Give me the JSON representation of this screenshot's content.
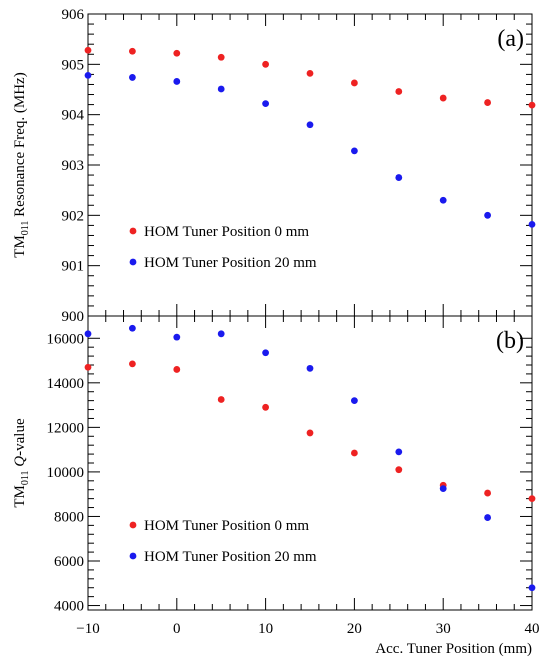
{
  "colors": {
    "series_0mm": "#ee2222",
    "series_20mm": "#1a1aee",
    "axis": "#000000"
  },
  "x_axis": {
    "title": "Acc. Tuner Position (mm)",
    "ticks": [
      -10,
      0,
      10,
      20,
      30,
      40
    ],
    "tick_labels": [
      "−10",
      "0",
      "10",
      "20",
      "30",
      "40"
    ],
    "range": [
      -10,
      40
    ]
  },
  "chart_data": [
    {
      "type": "scatter",
      "panel_label": "(a)",
      "ylabel_main": "TM",
      "ylabel_sub": "011",
      "ylabel_rest": " Resonance Freq. (MHz)",
      "ylim": [
        900,
        906
      ],
      "y_ticks": [
        900,
        901,
        902,
        903,
        904,
        905,
        906
      ],
      "legend": "bottom-left",
      "grid": false,
      "x": [
        -10,
        -5,
        0,
        5,
        10,
        15,
        20,
        25,
        30,
        35,
        40
      ],
      "series": [
        {
          "name": "HOM Tuner Position 0 mm",
          "values": [
            905.28,
            905.26,
            905.22,
            905.14,
            905.0,
            904.82,
            904.63,
            904.46,
            904.33,
            904.24,
            904.19
          ]
        },
        {
          "name": "HOM Tuner Position 20 mm",
          "values": [
            904.78,
            904.74,
            904.66,
            904.51,
            904.22,
            903.8,
            903.28,
            902.75,
            902.3,
            902.0,
            901.82
          ]
        }
      ]
    },
    {
      "type": "scatter",
      "panel_label": "(b)",
      "ylabel_main": "TM",
      "ylabel_sub": "011",
      "ylabel_italic": "Q",
      "ylabel_rest": "-value",
      "ylim": [
        3800,
        17000
      ],
      "y_ticks": [
        4000,
        6000,
        8000,
        10000,
        12000,
        14000,
        16000
      ],
      "legend": "bottom-left",
      "grid": false,
      "x": [
        -10,
        -5,
        0,
        5,
        10,
        15,
        20,
        25,
        30,
        35,
        40
      ],
      "series": [
        {
          "name": "HOM Tuner Position 0 mm",
          "values": [
            14700,
            14850,
            14600,
            13250,
            12900,
            11750,
            10850,
            10100,
            9400,
            9050,
            8800
          ]
        },
        {
          "name": "HOM Tuner Position 20 mm",
          "values": [
            16200,
            16450,
            16050,
            16200,
            15350,
            14650,
            13200,
            10900,
            9250,
            7950,
            4800
          ]
        }
      ]
    }
  ]
}
